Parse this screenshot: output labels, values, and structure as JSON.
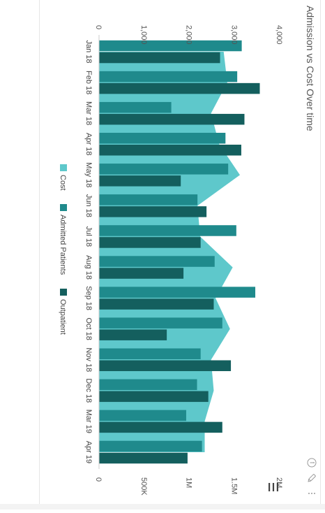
{
  "chart_data": {
    "type": "bar",
    "title": "Admission vs Cost Over time",
    "categories": [
      "Jan 18",
      "Feb 18",
      "Mar 18",
      "Apr 18",
      "May 18",
      "Jun 18",
      "Jul 18",
      "Aug 18",
      "Sep 18",
      "Oct 18",
      "Nov 18",
      "Dec 18",
      "Mar 19",
      "Apr 19"
    ],
    "series": [
      {
        "name": "Cost",
        "kind": "area",
        "axis": "secondary",
        "color": "#5ec8cb",
        "values": [
          1380000,
          1420000,
          1240000,
          1330000,
          1560000,
          1090000,
          1120000,
          1480000,
          1290000,
          1450000,
          1240000,
          1270000,
          1170000,
          1170000
        ]
      },
      {
        "name": "Admitted Patients",
        "kind": "bar",
        "axis": "primary",
        "color": "#1f8a8c",
        "values": [
          3160,
          3060,
          1600,
          2800,
          2860,
          2180,
          3040,
          2560,
          3460,
          2730,
          2250,
          2170,
          1930,
          2280
        ]
      },
      {
        "name": "Outpatient",
        "kind": "bar",
        "axis": "primary",
        "color": "#145f5e",
        "values": [
          2680,
          3560,
          3220,
          3150,
          1810,
          2380,
          2250,
          1870,
          2540,
          1500,
          2920,
          2420,
          2730,
          1960
        ]
      }
    ],
    "primary_axis": {
      "min": 0,
      "max": 4000,
      "ticks": [
        "0",
        "1,000",
        "2,000",
        "3,000",
        "4,000"
      ]
    },
    "secondary_axis": {
      "min": 0,
      "max": 2000000,
      "ticks": [
        "0",
        "500K",
        "1M",
        "1.5M",
        "2M"
      ]
    },
    "grid": false,
    "legend": "bottom",
    "orientation": "rotated-90-clockwise"
  },
  "ui": {
    "menu_icon": "hamburger-menu-icon",
    "info_icon": "info-icon",
    "edit_icon": "pencil-icon",
    "more_icon": "more-vertical-icon"
  }
}
